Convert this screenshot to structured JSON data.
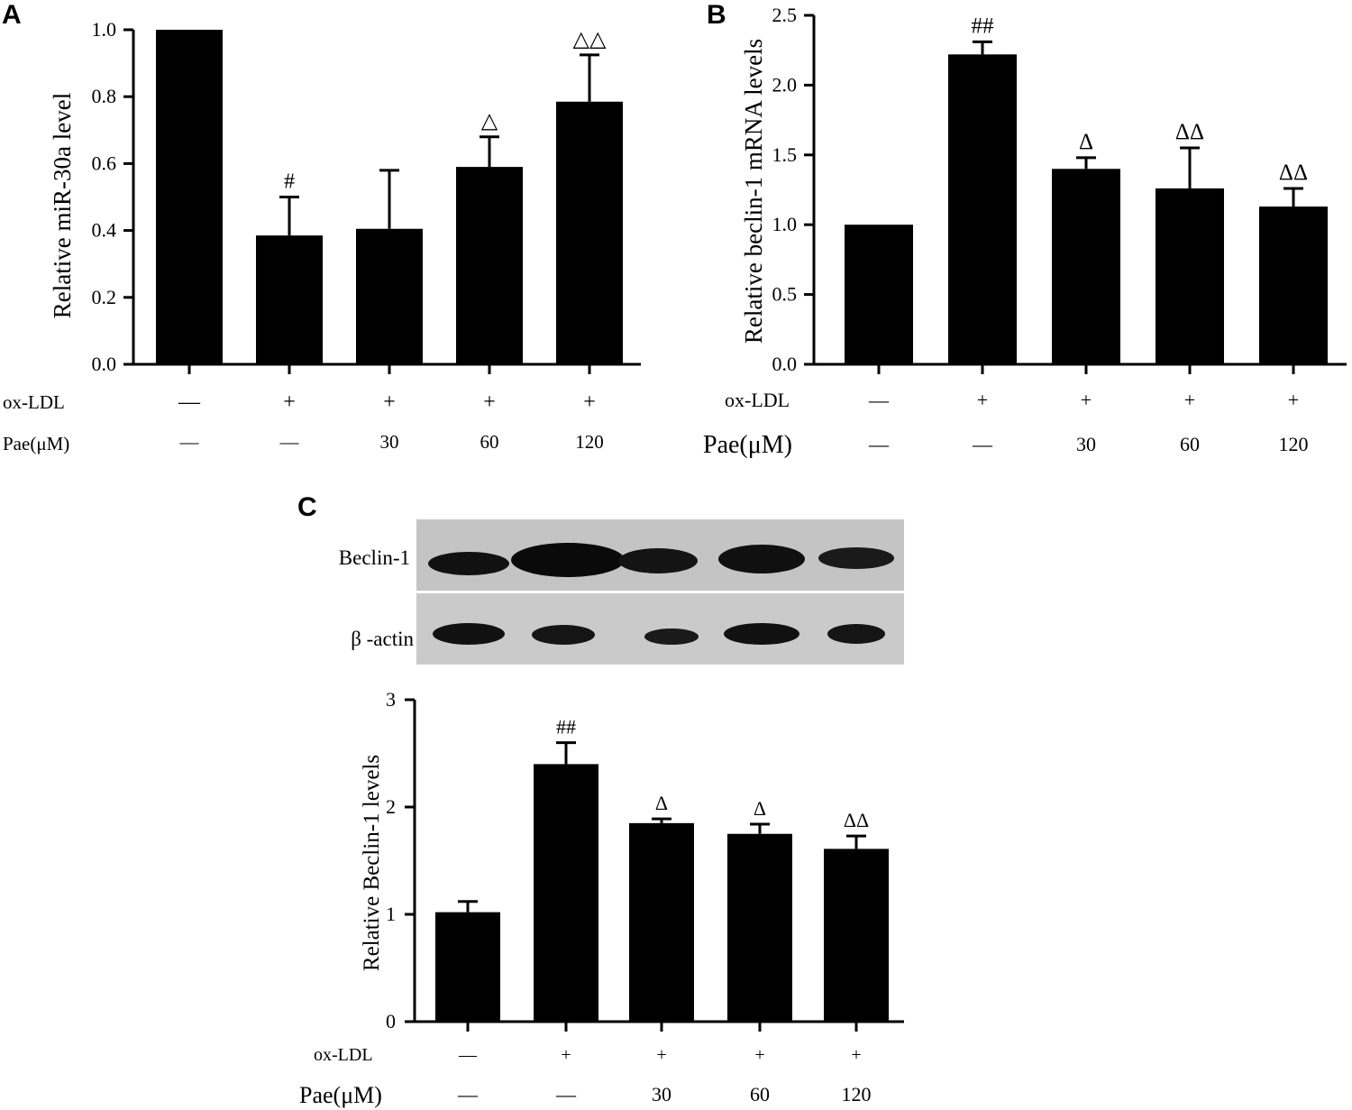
{
  "panels": [
    "A",
    "B",
    "C"
  ],
  "row_labels": {
    "oxldl": "ox-LDL",
    "pae": "Pae(μM)"
  },
  "blot": {
    "labels": [
      "Beclin-1",
      "β -actin"
    ]
  },
  "chart_data": [
    {
      "type": "bar",
      "panel": "A",
      "ylabel": "Relative  miR-30a level",
      "xlabel": "",
      "ylim": [
        0,
        1.0
      ],
      "yticks": [
        "0.0",
        "0.2",
        "0.4",
        "0.6",
        "0.8",
        "1.0"
      ],
      "ytick_values": [
        0,
        0.2,
        0.4,
        0.6,
        0.8,
        1.0
      ],
      "groups": [
        {
          "oxldl": "—",
          "pae": "—"
        },
        {
          "oxldl": "+",
          "pae": "—"
        },
        {
          "oxldl": "+",
          "pae": "30"
        },
        {
          "oxldl": "+",
          "pae": "60"
        },
        {
          "oxldl": "+",
          "pae": "120"
        }
      ],
      "values": [
        1.0,
        0.385,
        0.405,
        0.59,
        0.785
      ],
      "errors": [
        0,
        0.115,
        0.175,
        0.09,
        0.14
      ],
      "annotations": [
        "",
        "#",
        "",
        "△",
        "△△"
      ]
    },
    {
      "type": "bar",
      "panel": "B",
      "ylabel": "Relative beclin-1 mRNA levels",
      "xlabel": "",
      "ylim": [
        0,
        2.5
      ],
      "yticks": [
        "0.0",
        "0.5",
        "1.0",
        "1.5",
        "2.0",
        "2.5"
      ],
      "ytick_values": [
        0,
        0.5,
        1.0,
        1.5,
        2.0,
        2.5
      ],
      "groups": [
        {
          "oxldl": "—",
          "pae": "—"
        },
        {
          "oxldl": "+",
          "pae": "—"
        },
        {
          "oxldl": "+",
          "pae": "30"
        },
        {
          "oxldl": "+",
          "pae": "60"
        },
        {
          "oxldl": "+",
          "pae": "120"
        }
      ],
      "values": [
        1.0,
        2.22,
        1.4,
        1.26,
        1.13
      ],
      "errors": [
        0,
        0.09,
        0.08,
        0.29,
        0.13
      ],
      "annotations": [
        "",
        "##",
        "Δ",
        "ΔΔ",
        "ΔΔ"
      ]
    },
    {
      "type": "bar",
      "panel": "C",
      "ylabel": "Relative Beclin-1 levels",
      "xlabel": "",
      "ylim": [
        0,
        3
      ],
      "yticks": [
        "0",
        "1",
        "2",
        "3"
      ],
      "ytick_values": [
        0,
        1,
        2,
        3
      ],
      "groups": [
        {
          "oxldl": "—",
          "pae": "—"
        },
        {
          "oxldl": "+",
          "pae": "—"
        },
        {
          "oxldl": "+",
          "pae": "30"
        },
        {
          "oxldl": "+",
          "pae": "60"
        },
        {
          "oxldl": "+",
          "pae": "120"
        }
      ],
      "values": [
        1.02,
        2.4,
        1.85,
        1.75,
        1.61
      ],
      "errors": [
        0.1,
        0.2,
        0.04,
        0.09,
        0.12
      ],
      "annotations": [
        "",
        "##",
        "Δ",
        "Δ",
        "ΔΔ"
      ]
    }
  ]
}
